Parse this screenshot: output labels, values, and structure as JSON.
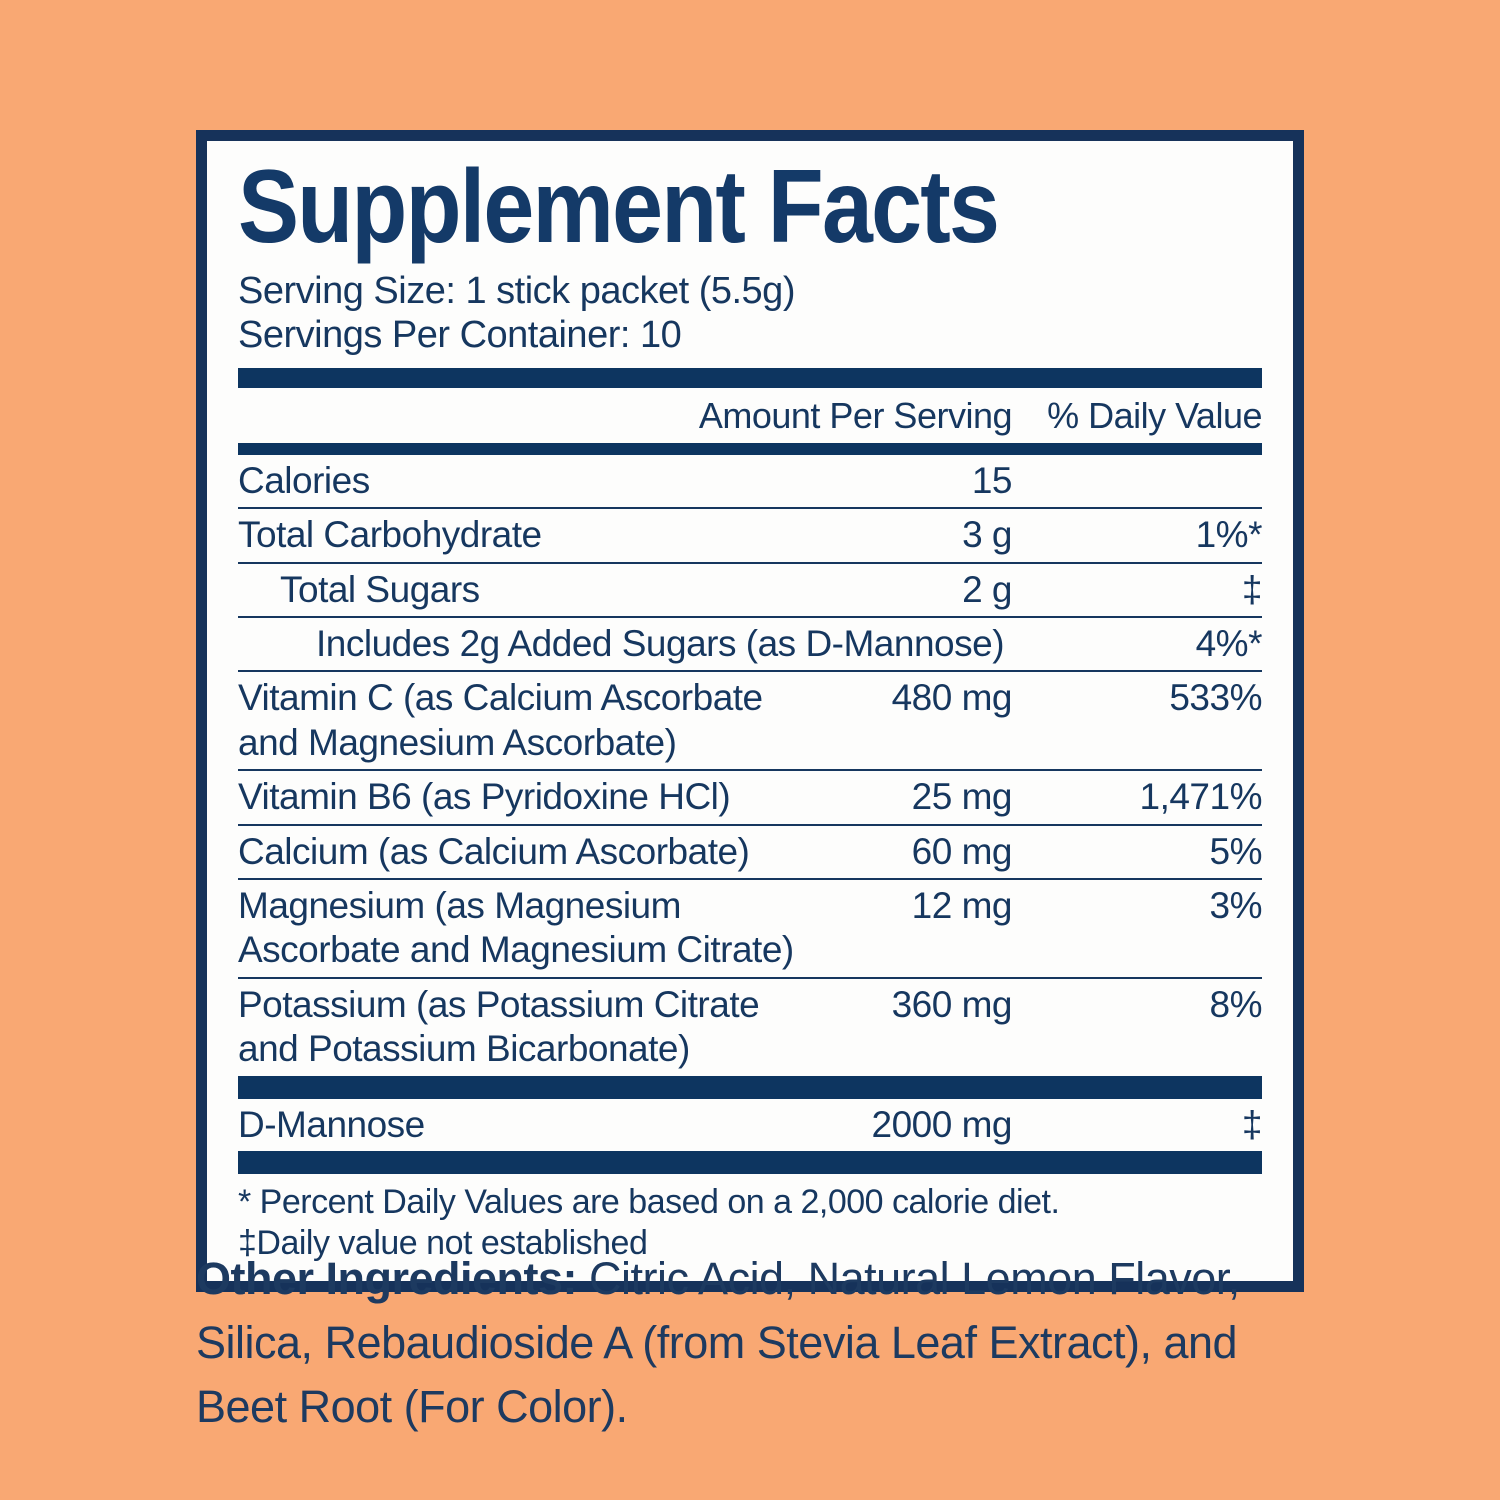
{
  "colors": {
    "background_peach": "#f9a873",
    "navy_text": "#16375f",
    "navy_bar": "#0d3560",
    "panel_border": "#16325a",
    "panel_background": "#fdfdfc"
  },
  "panel": {
    "title": "Supplement Facts",
    "serving_size": "Serving Size: 1 stick packet (5.5g)",
    "servings_per_container": "Servings Per Container: 10",
    "columns": {
      "amount": "Amount Per Serving",
      "dv": "% Daily Value"
    },
    "rows": [
      {
        "name": "Calories",
        "amount": "15",
        "dv": ""
      },
      {
        "name": "Total Carbohydrate",
        "amount": "3 g",
        "dv": "1%*"
      },
      {
        "name": "Total Sugars",
        "amount": "2 g",
        "dv": "‡"
      },
      {
        "name": "Includes 2g Added Sugars (as D-Mannose)",
        "amount": "",
        "dv": "4%*"
      },
      {
        "name": "Vitamin C (as Calcium Ascorbate\nand Magnesium Ascorbate)",
        "amount": "480 mg",
        "dv": "533%"
      },
      {
        "name": "Vitamin B6 (as Pyridoxine HCl)",
        "amount": "25 mg",
        "dv": "1,471%"
      },
      {
        "name": "Calcium (as Calcium Ascorbate)",
        "amount": "60 mg",
        "dv": "5%"
      },
      {
        "name": "Magnesium (as Magnesium\nAscorbate and Magnesium Citrate)",
        "amount": "12 mg",
        "dv": "3%"
      },
      {
        "name": "Potassium (as Potassium Citrate\nand Potassium Bicarbonate)",
        "amount": "360 mg",
        "dv": "8%"
      }
    ],
    "dmannose": {
      "name": "D-Mannose",
      "amount": "2000 mg",
      "dv": "‡"
    },
    "footnotes": "* Percent Daily Values are based on a 2,000 calorie diet.\n‡Daily value not established"
  },
  "other_ingredients": {
    "label": "Other Ingredients:",
    "text": " Citric Acid, Natural Lemon Flavor,\nSilica, Rebaudioside A (from Stevia Leaf Extract), and\nBeet Root (For Color)."
  }
}
